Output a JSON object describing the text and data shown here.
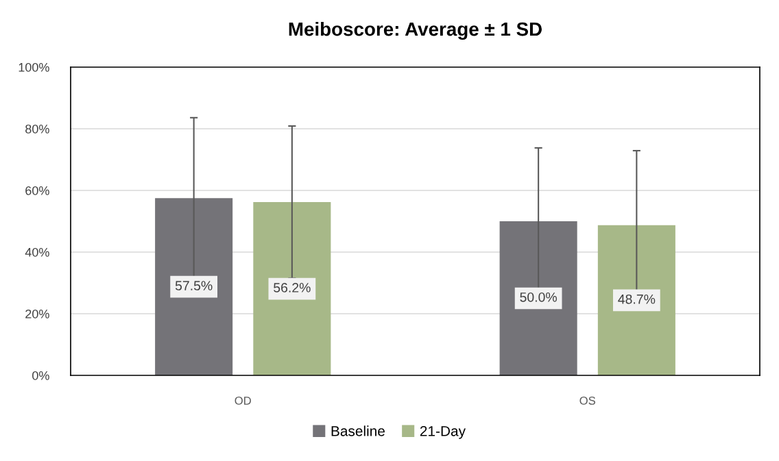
{
  "chart_data": {
    "type": "bar",
    "title": "Meiboscore: Average ± 1 SD",
    "categories": [
      "OD",
      "OS"
    ],
    "series": [
      {
        "name": "Baseline",
        "color": "#747378",
        "values": [
          57.5,
          50.0
        ],
        "errors": [
          26.1,
          23.8
        ],
        "value_labels": [
          "57.5%",
          "50.0%"
        ]
      },
      {
        "name": "21-Day",
        "color": "#a7b888",
        "values": [
          56.2,
          48.7
        ],
        "errors": [
          24.7,
          24.2
        ],
        "value_labels": [
          "56.2%",
          "48.7%"
        ]
      }
    ],
    "ylim": [
      0,
      100
    ],
    "yticks": [
      {
        "value": 0,
        "label": "0%"
      },
      {
        "value": 20,
        "label": "20%"
      },
      {
        "value": 40,
        "label": "40%"
      },
      {
        "value": 60,
        "label": "60%"
      },
      {
        "value": 80,
        "label": "80%"
      },
      {
        "value": 100,
        "label": "100%"
      }
    ],
    "grid": "y",
    "legend": "bottom"
  }
}
